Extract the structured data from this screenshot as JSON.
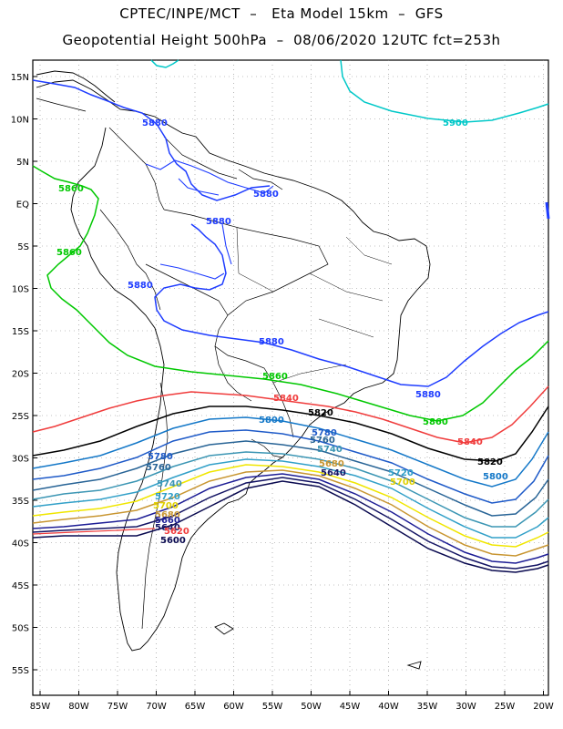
{
  "title_line1": "CPTEC/INPE/MCT  –   Eta Model 15km  –  GFS",
  "title_line2": "Geopotential Height 500hPa  –  08/06/2020 12UTC fct=253h",
  "lat_labels": [
    "15N",
    "10N",
    "5N",
    "EQ",
    "5S",
    "10S",
    "15S",
    "20S",
    "25S",
    "30S",
    "35S",
    "40S",
    "45S",
    "50S",
    "55S"
  ],
  "lon_labels": [
    "85W",
    "80W",
    "75W",
    "70W",
    "65W",
    "60W",
    "55W",
    "50W",
    "45W",
    "40W",
    "35W",
    "30W",
    "25W",
    "20W"
  ],
  "colors": {
    "c5900": "#00c8c8",
    "c5880": "#1e3cff",
    "c5860": "#00c800",
    "c5840": "#f03c3c",
    "c5820": "#000000",
    "c5800": "#1478c8",
    "c5780": "#1e5ac8",
    "c5760": "#286496",
    "c5740": "#3c96b4",
    "c5720": "#32a0c8",
    "c5700": "#f0e600",
    "c5680": "#c89632",
    "c5660": "#1e1e96",
    "c5640": "#141464",
    "c5620": "#f03c3c",
    "c5600": "#0a0a50"
  },
  "contour_labels": {
    "l5900": "5900",
    "l5880a": "5880",
    "l5880b": "5880",
    "l5880c": "5880",
    "l5880d": "5880",
    "l5880e": "5880",
    "l5880f": "5880",
    "l5860a": "5860",
    "l5860b": "5860",
    "l5860c": "5860",
    "l5860d": "5860",
    "l5840a": "5840",
    "l5840b": "5840",
    "l5820a": "5820",
    "l5820b": "5820",
    "l5800a": "5800",
    "l5800b": "5800",
    "l5780a": "5780",
    "l5780b": "5780",
    "l5760a": "5760",
    "l5760b": "5760",
    "l5740a": "5740",
    "l5740b": "5740",
    "l5720a": "5720",
    "l5720b": "5720",
    "l5700a": "5700",
    "l5700b": "5700",
    "l5680a": "5680",
    "l5680b": "5680",
    "l5660": "5660",
    "l5640a": "5640",
    "l5640b": "5640",
    "l5620": "5620",
    "l5600": "5600"
  }
}
